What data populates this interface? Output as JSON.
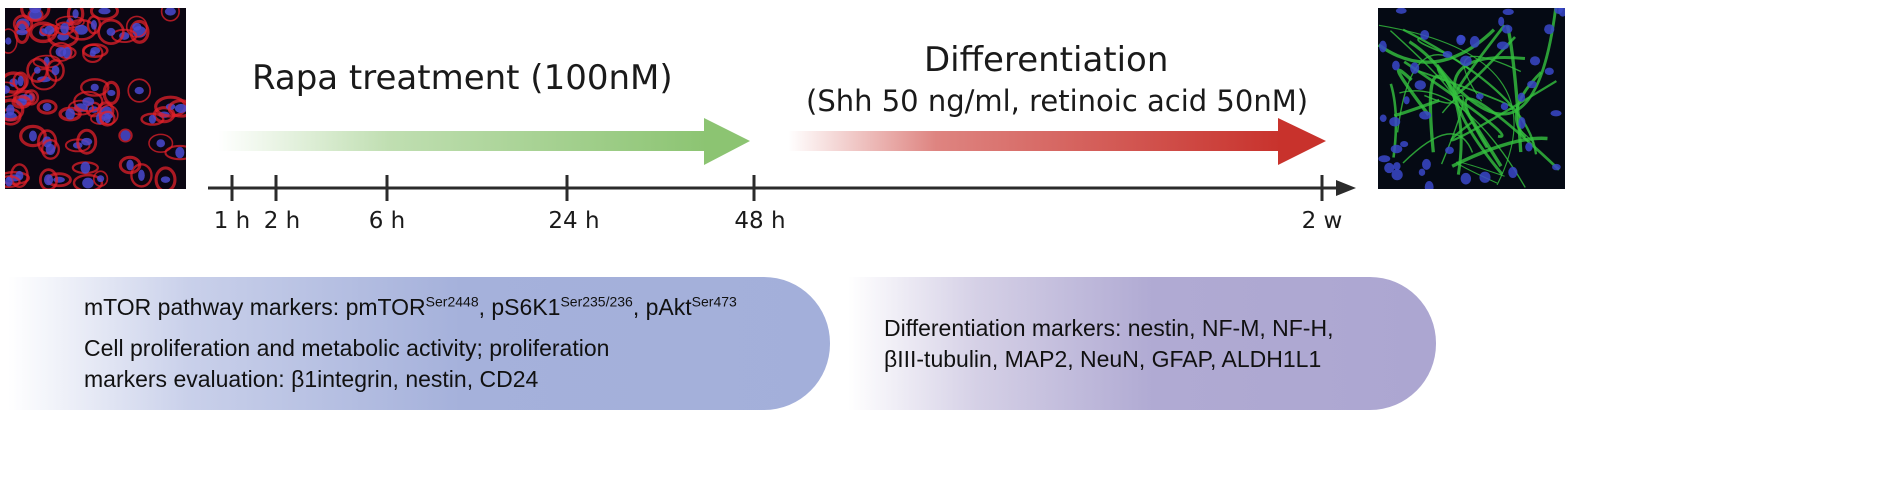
{
  "images": {
    "left_icon": "red-blue-cell-micrograph",
    "right_icon": "green-blue-neuron-micrograph"
  },
  "treatment": {
    "title": "Rapa treatment (100nM)",
    "color": "#8cc472"
  },
  "differentiation": {
    "title": "Differentiation",
    "subtitle": "(Shh 50 ng/ml, retinoic acid 50nM)",
    "color": "#c8322c"
  },
  "timeline": {
    "ticks": [
      "1 h",
      "2 h",
      "6 h",
      "24 h",
      "48 h",
      "2 w"
    ]
  },
  "panels": {
    "left": {
      "line1_prefix": "mTOR pathway markers: pmTOR",
      "line1_sup1": "Ser2448",
      "line1_mid1": ", pS6K1",
      "line1_sup2": "Ser235/236",
      "line1_mid2": ", pAkt",
      "line1_sup3": "Ser473",
      "line2": "Cell proliferation and metabolic activity; proliferation",
      "line3": "markers evaluation: β1integrin, nestin, CD24"
    },
    "right": {
      "line1": "Differentiation markers: nestin, NF-M, NF-H,",
      "line2": "βIII-tubulin, MAP2, NeuN, GFAP, ALDH1L1"
    }
  }
}
